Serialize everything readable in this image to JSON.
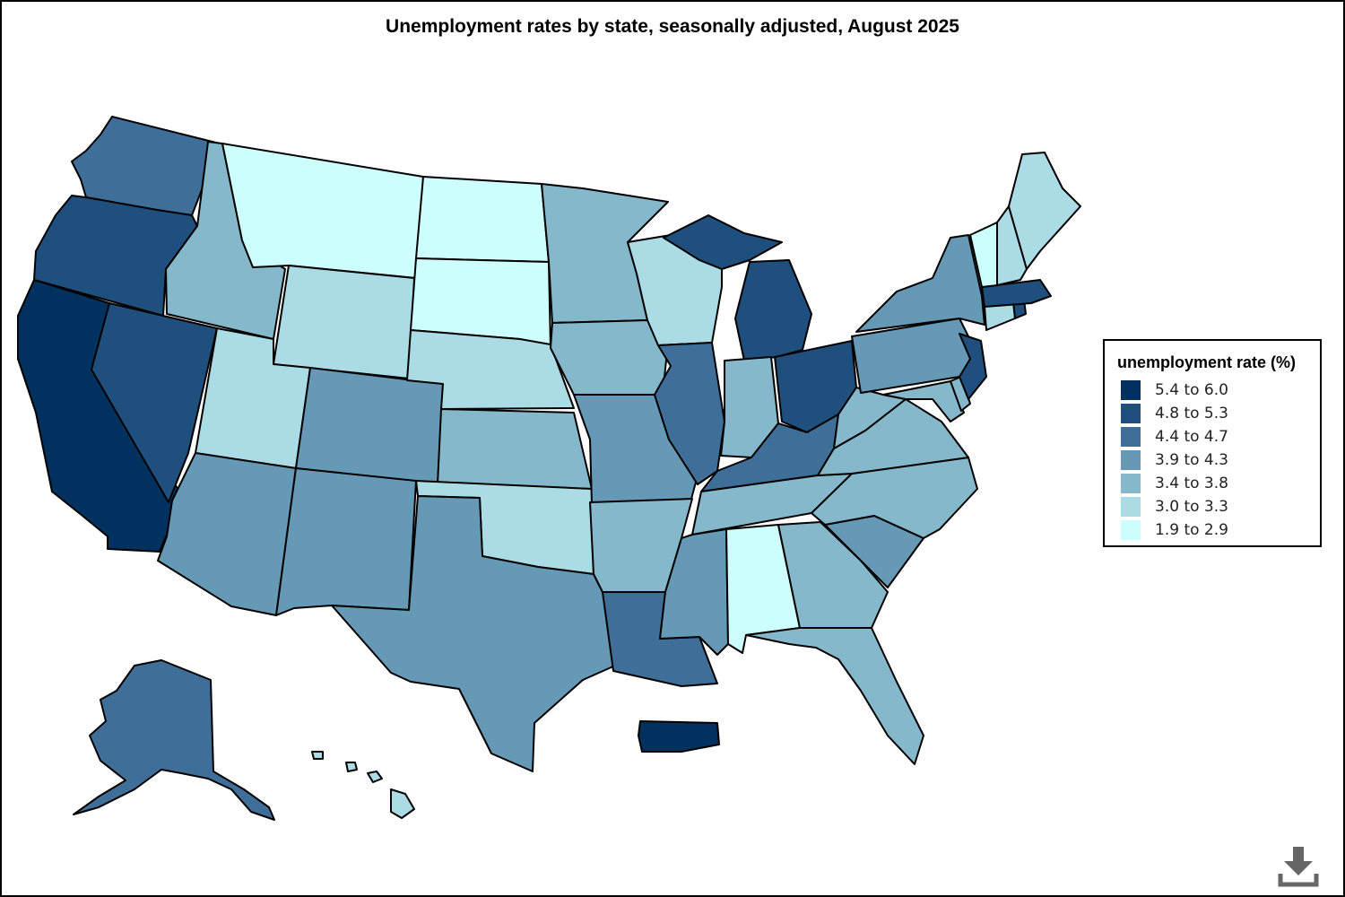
{
  "title": "Unemployment rates by state, seasonally adjusted, August 2025",
  "legend": {
    "title": "unemployment rate (%)",
    "items": [
      {
        "label": "5.4 to 6.0",
        "color": "#01325f"
      },
      {
        "label": "4.8 to 5.3",
        "color": "#1f4f7d"
      },
      {
        "label": "4.4 to 4.7",
        "color": "#3f6f98"
      },
      {
        "label": "3.9 to 4.3",
        "color": "#6699b5"
      },
      {
        "label": "3.4 to 3.8",
        "color": "#86b8cb"
      },
      {
        "label": "3.0 to 3.3",
        "color": "#abdce6"
      },
      {
        "label": "1.9 to 2.9",
        "color": "#ccfffe"
      }
    ]
  },
  "download_icon": "download-icon"
}
